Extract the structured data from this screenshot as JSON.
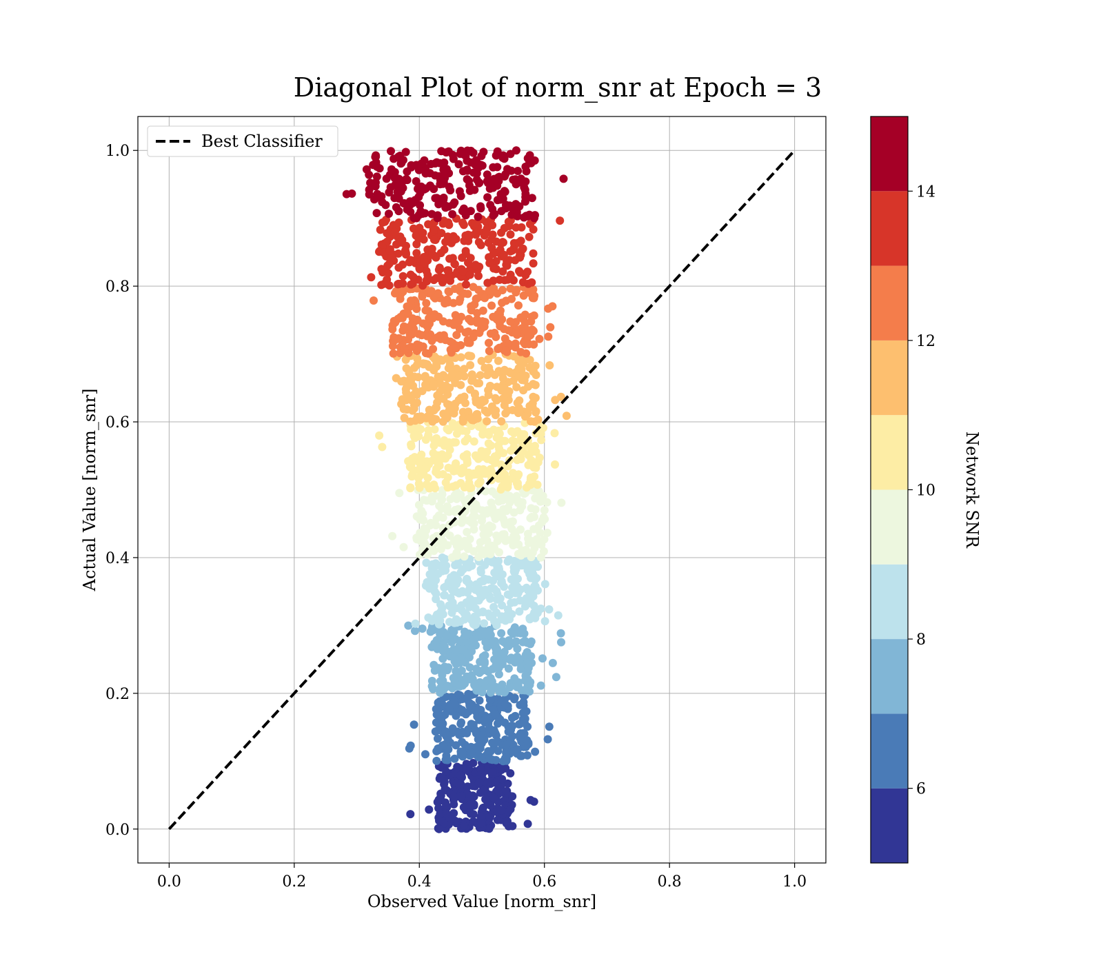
{
  "chart_data": {
    "type": "scatter",
    "title": "Diagonal Plot of norm_snr at Epoch = 3",
    "xlabel": "Observed Value [norm_snr]",
    "ylabel": "Actual Value [norm_snr]",
    "xlim": [
      -0.05,
      1.05
    ],
    "ylim": [
      -0.05,
      1.05
    ],
    "x_ticks": [
      "0.0",
      "0.2",
      "0.4",
      "0.6",
      "0.8",
      "1.0"
    ],
    "y_ticks": [
      "0.0",
      "0.2",
      "0.4",
      "0.6",
      "0.8",
      "1.0"
    ],
    "grid": true,
    "legend": {
      "placement": "top-left",
      "entries": [
        {
          "label": "Best Classifier",
          "style": "dashed",
          "color": "#000000"
        }
      ]
    },
    "reference_line": {
      "name": "Best Classifier",
      "x": [
        0.0,
        1.0
      ],
      "y": [
        0.0,
        1.0
      ]
    },
    "colorbar": {
      "label": "Network SNR",
      "range": [
        5,
        15
      ],
      "ticks": [
        "6",
        "8",
        "10",
        "12",
        "14"
      ],
      "colors": [
        "#313695",
        "#4a7bb7",
        "#81b6d6",
        "#bde2ec",
        "#edf7df",
        "#fdeda5",
        "#fdbf6f",
        "#f47d4b",
        "#d73529",
        "#a50026"
      ]
    },
    "bands": [
      {
        "snr": 5.5,
        "y_range": [
          0.0,
          0.1
        ],
        "x_center": 0.49,
        "x_halfwidth": 0.06,
        "color": "#313695"
      },
      {
        "snr": 6.5,
        "y_range": [
          0.1,
          0.2
        ],
        "x_center": 0.5,
        "x_halfwidth": 0.075,
        "color": "#4a7bb7"
      },
      {
        "snr": 7.5,
        "y_range": [
          0.2,
          0.3
        ],
        "x_center": 0.5,
        "x_halfwidth": 0.08,
        "color": "#81b6d6"
      },
      {
        "snr": 8.5,
        "y_range": [
          0.3,
          0.4
        ],
        "x_center": 0.5,
        "x_halfwidth": 0.09,
        "color": "#bde2ec"
      },
      {
        "snr": 9.5,
        "y_range": [
          0.4,
          0.5
        ],
        "x_center": 0.5,
        "x_halfwidth": 0.105,
        "color": "#edf7df"
      },
      {
        "snr": 10.5,
        "y_range": [
          0.5,
          0.6
        ],
        "x_center": 0.49,
        "x_halfwidth": 0.105,
        "color": "#fdeda5"
      },
      {
        "snr": 11.5,
        "y_range": [
          0.6,
          0.7
        ],
        "x_center": 0.48,
        "x_halfwidth": 0.11,
        "color": "#fdbf6f"
      },
      {
        "snr": 12.5,
        "y_range": [
          0.7,
          0.8
        ],
        "x_center": 0.47,
        "x_halfwidth": 0.115,
        "color": "#f47d4b"
      },
      {
        "snr": 13.5,
        "y_range": [
          0.8,
          0.9
        ],
        "x_center": 0.46,
        "x_halfwidth": 0.125,
        "color": "#d73529"
      },
      {
        "snr": 14.5,
        "y_range": [
          0.9,
          1.0
        ],
        "x_center": 0.45,
        "x_halfwidth": 0.135,
        "color": "#a50026"
      }
    ]
  }
}
